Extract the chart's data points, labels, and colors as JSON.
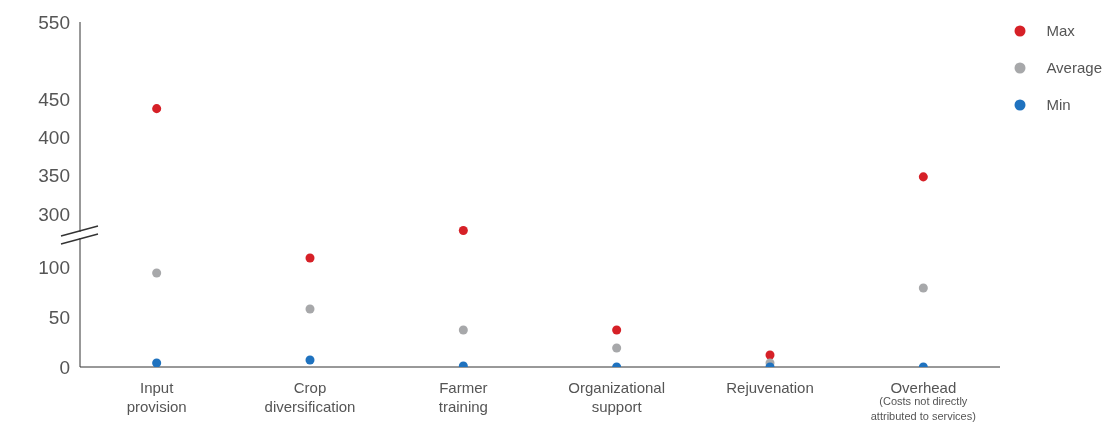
{
  "chart_data": {
    "type": "scatter",
    "categories": [
      "Input provision",
      "Crop diversification",
      "Farmer training",
      "Organizational support",
      "Rejuvenation",
      "Overhead"
    ],
    "ylim": [
      0,
      345
    ],
    "yticks": [
      0,
      50,
      100
    ],
    "y2lim": [
      100,
      550
    ],
    "y2ticks": [
      300,
      350,
      400,
      450,
      550
    ],
    "marker": "circle",
    "legend": "top right",
    "annotations": [
      "(Costs not directly attributed to services)"
    ],
    "series": [
      {
        "name": "Max",
        "color": "#d62027",
        "values": [
          null,
          109,
          null,
          37,
          12,
          null
        ]
      },
      {
        "name": "Average",
        "color": "#a7a8aa",
        "values": [
          94,
          58,
          37,
          19,
          4,
          79
        ]
      },
      {
        "name": "Min",
        "color": "#1f72bf",
        "values": [
          4,
          7,
          1,
          0,
          0,
          0
        ]
      },
      {
        "color": "#d62027",
        "axis": "y2",
        "values": [
          437,
          null,
          278,
          null,
          null,
          348
        ]
      }
    ]
  }
}
